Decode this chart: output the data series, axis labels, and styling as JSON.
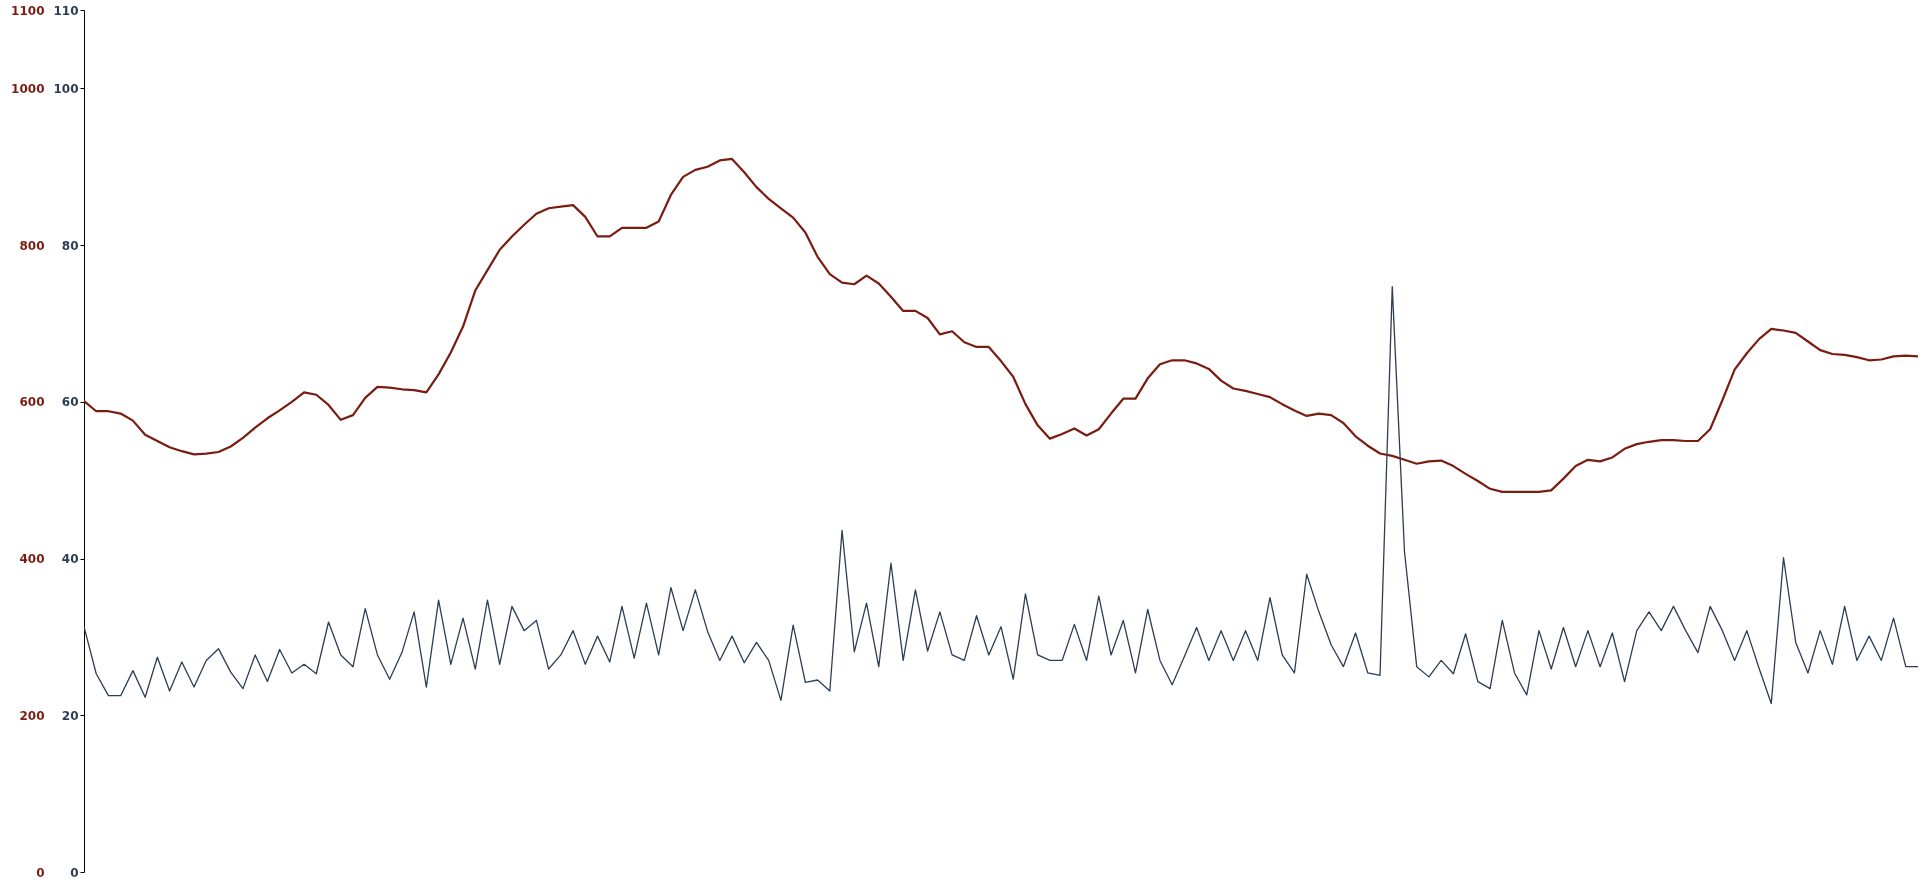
{
  "chart_data": {
    "type": "line",
    "categories": [
      null,
      null,
      null,
      null,
      null,
      null,
      null,
      null,
      null,
      null,
      null,
      null,
      null,
      null,
      null,
      null,
      null,
      null,
      null,
      null,
      null,
      null,
      null,
      null,
      null,
      null,
      null,
      null,
      null,
      null,
      null,
      null,
      null,
      null,
      null,
      null,
      null,
      null,
      null,
      null,
      null,
      null,
      null,
      null,
      null,
      null,
      null,
      null,
      null,
      null,
      null,
      null,
      null,
      null,
      null,
      null,
      null,
      null,
      null,
      null,
      null,
      null,
      null,
      null,
      null,
      null,
      null,
      null,
      null,
      null,
      null,
      null,
      null,
      null,
      null,
      null,
      null,
      null,
      null,
      null,
      null,
      null,
      null,
      null,
      null,
      null,
      null,
      null,
      null,
      null,
      null,
      null,
      null,
      null,
      null,
      null,
      null,
      null,
      null,
      null,
      null,
      null,
      null,
      null,
      null,
      null,
      null,
      null,
      null,
      null,
      null,
      null,
      null,
      null,
      null,
      null,
      null,
      null,
      null,
      null,
      null,
      null,
      null,
      null,
      null,
      null,
      null,
      null,
      null,
      null,
      null,
      null,
      null,
      null,
      null,
      null,
      null,
      null,
      null,
      null,
      null,
      null,
      null,
      null,
      null,
      null,
      null,
      null,
      null,
      null,
      null
    ],
    "ylim": [
      0,
      1100
    ],
    "yticks": [
      0,
      200,
      400,
      600,
      800,
      1000,
      1100
    ],
    "y2lim": [
      0,
      110
    ],
    "y2ticks": [
      0,
      20,
      40,
      60,
      80,
      100,
      110
    ],
    "grid": false,
    "marker": "none",
    "line_style": "solid",
    "series": [
      {
        "color": "#7b1c12",
        "axis": "y",
        "values": [
          601,
          588,
          588,
          585,
          576,
          558,
          550,
          542,
          537,
          533,
          534,
          536,
          543,
          554,
          567,
          579,
          589,
          600,
          612,
          609,
          596,
          577,
          583,
          605,
          619,
          618,
          616,
          615,
          612,
          635,
          663,
          696,
          742,
          768,
          794,
          811,
          826,
          840,
          847,
          849,
          851,
          836,
          811,
          811,
          822,
          822,
          822,
          830,
          864,
          887,
          896,
          900,
          908,
          910,
          893,
          874,
          859,
          847,
          835,
          816,
          785,
          763,
          752,
          750,
          761,
          751,
          734,
          716,
          716,
          707,
          686,
          690,
          676,
          670,
          670,
          652,
          632,
          597,
          570,
          553,
          559,
          566,
          557,
          565,
          585,
          604,
          604,
          630,
          648,
          653,
          653,
          649,
          642,
          627,
          617,
          614,
          610,
          606,
          597,
          589,
          582,
          585,
          583,
          573,
          556,
          544,
          534,
          531,
          526,
          521,
          524,
          525,
          518,
          508,
          499,
          489,
          485,
          485,
          485,
          485,
          487,
          502,
          518,
          526,
          524,
          529,
          540,
          546,
          549,
          551,
          551,
          550,
          550,
          565,
          602,
          641,
          662,
          680,
          693,
          691,
          688,
          677,
          666,
          661,
          660,
          657,
          653,
          654,
          658,
          659,
          658
        ]
      },
      {
        "color": "#2c3e55",
        "axis": "y2",
        "values": [
          31.3,
          25.3,
          22.5,
          22.5,
          25.7,
          22.3,
          27.4,
          23.1,
          26.8,
          23.6,
          27.0,
          28.5,
          25.5,
          23.4,
          27.7,
          24.3,
          28.4,
          25.4,
          26.5,
          25.3,
          31.9,
          27.7,
          26.2,
          33.6,
          27.7,
          24.6,
          28.0,
          33.2,
          23.6,
          34.7,
          26.5,
          32.4,
          25.9,
          34.7,
          26.5,
          33.9,
          30.8,
          32.1,
          25.9,
          27.7,
          30.8,
          26.5,
          30.1,
          26.8,
          33.9,
          27.3,
          34.3,
          27.7,
          36.3,
          30.8,
          36.0,
          30.7,
          27.0,
          30.1,
          26.7,
          29.3,
          27.0,
          21.9,
          31.5,
          24.2,
          24.5,
          23.1,
          43.6,
          28.1,
          34.3,
          26.2,
          39.4,
          27.0,
          36.0,
          28.2,
          33.2,
          27.7,
          27.0,
          32.7,
          27.7,
          31.3,
          24.6,
          35.5,
          27.7,
          27.0,
          27.0,
          31.6,
          27.0,
          35.2,
          27.7,
          32.1,
          25.4,
          33.5,
          27.0,
          23.9,
          27.5,
          31.2,
          27.0,
          30.8,
          27.0,
          30.8,
          27.0,
          35.0,
          27.7,
          25.4,
          38.0,
          33.2,
          29.0,
          26.2,
          30.5,
          25.4,
          25.1,
          74.7,
          40.9,
          26.2,
          24.9,
          27.0,
          25.3,
          30.4,
          24.3,
          23.4,
          32.1,
          25.4,
          22.6,
          30.8,
          25.9,
          31.2,
          26.2,
          30.8,
          26.2,
          30.5,
          24.3,
          30.8,
          33.2,
          30.8,
          33.9,
          30.8,
          28.0,
          33.9,
          30.8,
          27.0,
          30.8,
          26.0,
          21.5,
          40.1,
          29.3,
          25.4,
          30.8,
          26.5,
          33.9,
          27.0,
          30.1,
          27.0,
          32.4,
          26.2,
          26.2
        ]
      }
    ]
  }
}
